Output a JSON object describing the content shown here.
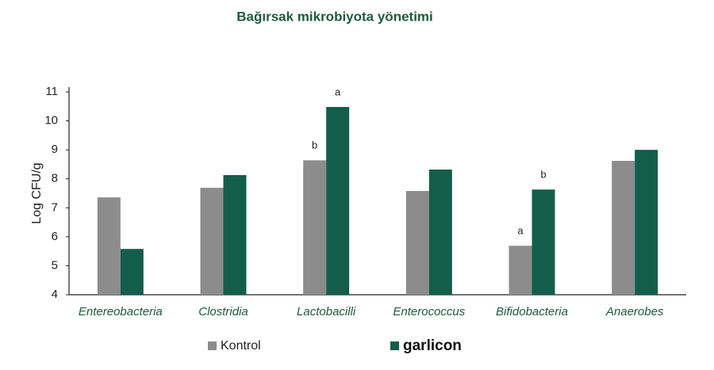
{
  "chart_data": {
    "type": "bar",
    "title": "Bağırsak mikrobiyota yönetimi",
    "y_label": "Log CFU/g",
    "categories": [
      "Entereobacteria",
      "Clostridia",
      "Lactobacilli",
      "Enterococcus",
      "Bifidobacteria",
      "Anaerobes"
    ],
    "series": [
      {
        "name": "Kontrol",
        "color": "#8c8c8c",
        "values": [
          7.36,
          7.69,
          8.64,
          7.58,
          5.69,
          8.62
        ],
        "significance": [
          null,
          null,
          "b",
          null,
          "a",
          null
        ]
      },
      {
        "name": "garlicon",
        "color": "#135e4a",
        "values": [
          5.58,
          8.13,
          10.48,
          8.32,
          7.63,
          9.0
        ],
        "significance": [
          null,
          null,
          "a",
          null,
          "b",
          null
        ]
      }
    ],
    "ylim": [
      4,
      11
    ],
    "yticks": [
      4,
      5,
      6,
      7,
      8,
      9,
      10,
      11
    ],
    "grid": false
  }
}
